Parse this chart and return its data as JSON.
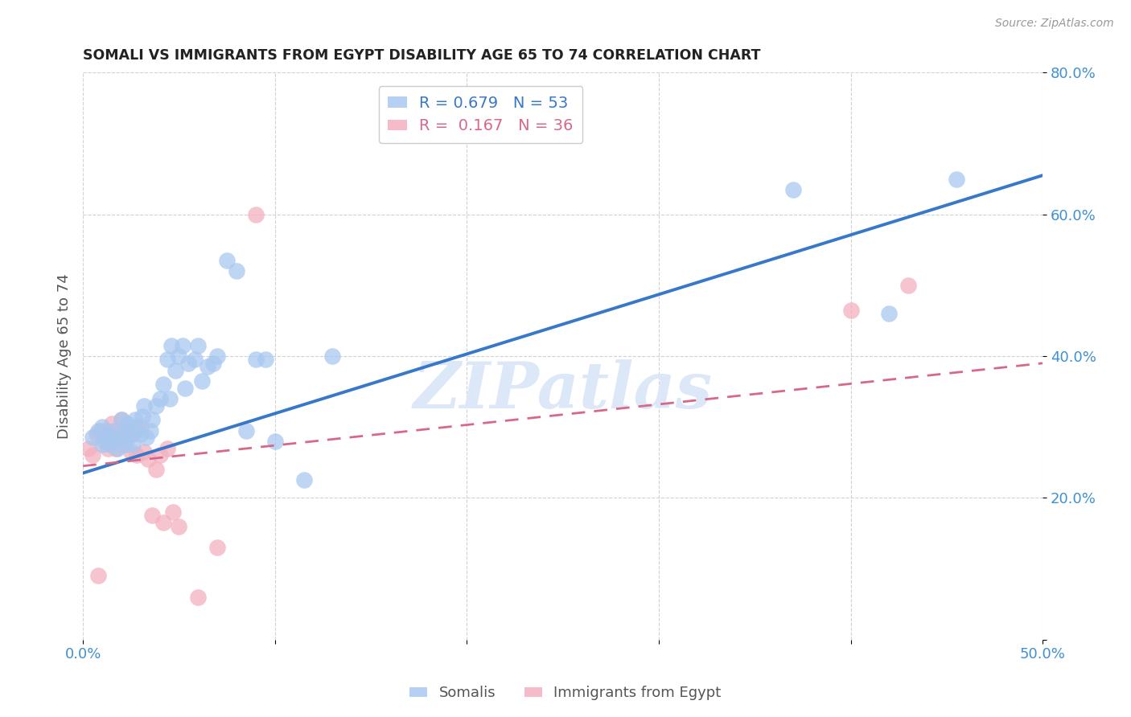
{
  "title": "SOMALI VS IMMIGRANTS FROM EGYPT DISABILITY AGE 65 TO 74 CORRELATION CHART",
  "source": "Source: ZipAtlas.com",
  "ylabel": "Disability Age 65 to 74",
  "xlim": [
    0.0,
    0.5
  ],
  "ylim": [
    0.0,
    0.8
  ],
  "xticks": [
    0.0,
    0.1,
    0.2,
    0.3,
    0.4,
    0.5
  ],
  "yticks": [
    0.0,
    0.2,
    0.4,
    0.6,
    0.8
  ],
  "xticklabels": [
    "0.0%",
    "",
    "",
    "",
    "",
    "50.0%"
  ],
  "yticklabels": [
    "",
    "20.0%",
    "40.0%",
    "60.0%",
    "80.0%"
  ],
  "somali_color": "#a8c8f0",
  "egypt_color": "#f4b0c0",
  "somali_line_color": "#3878c8",
  "egypt_line_color": "#d86888",
  "watermark": "ZIPatlas",
  "watermark_color": "#dce8f8",
  "background_color": "#ffffff",
  "grid_color": "#cccccc",
  "tick_color": "#4090d0",
  "somali_x": [
    0.005,
    0.008,
    0.01,
    0.01,
    0.012,
    0.013,
    0.014,
    0.015,
    0.016,
    0.018,
    0.02,
    0.02,
    0.022,
    0.022,
    0.023,
    0.025,
    0.026,
    0.027,
    0.028,
    0.03,
    0.031,
    0.032,
    0.033,
    0.035,
    0.036,
    0.038,
    0.04,
    0.042,
    0.044,
    0.045,
    0.046,
    0.048,
    0.05,
    0.052,
    0.053,
    0.055,
    0.058,
    0.06,
    0.062,
    0.065,
    0.068,
    0.07,
    0.075,
    0.08,
    0.085,
    0.09,
    0.095,
    0.1,
    0.115,
    0.13,
    0.37,
    0.42,
    0.455
  ],
  "somali_y": [
    0.285,
    0.295,
    0.275,
    0.3,
    0.28,
    0.29,
    0.275,
    0.285,
    0.295,
    0.27,
    0.285,
    0.31,
    0.275,
    0.295,
    0.305,
    0.29,
    0.275,
    0.31,
    0.3,
    0.29,
    0.315,
    0.33,
    0.285,
    0.295,
    0.31,
    0.33,
    0.34,
    0.36,
    0.395,
    0.34,
    0.415,
    0.38,
    0.4,
    0.415,
    0.355,
    0.39,
    0.395,
    0.415,
    0.365,
    0.385,
    0.39,
    0.4,
    0.535,
    0.52,
    0.295,
    0.395,
    0.395,
    0.28,
    0.225,
    0.4,
    0.635,
    0.46,
    0.65
  ],
  "egypt_x": [
    0.003,
    0.005,
    0.007,
    0.008,
    0.01,
    0.011,
    0.012,
    0.013,
    0.014,
    0.015,
    0.016,
    0.017,
    0.018,
    0.019,
    0.02,
    0.022,
    0.024,
    0.025,
    0.026,
    0.027,
    0.028,
    0.03,
    0.032,
    0.034,
    0.036,
    0.038,
    0.04,
    0.042,
    0.044,
    0.047,
    0.05,
    0.06,
    0.07,
    0.09,
    0.4,
    0.43
  ],
  "egypt_y": [
    0.27,
    0.26,
    0.29,
    0.09,
    0.295,
    0.28,
    0.295,
    0.27,
    0.28,
    0.305,
    0.28,
    0.27,
    0.295,
    0.275,
    0.31,
    0.285,
    0.3,
    0.265,
    0.29,
    0.295,
    0.26,
    0.3,
    0.265,
    0.255,
    0.175,
    0.24,
    0.26,
    0.165,
    0.27,
    0.18,
    0.16,
    0.06,
    0.13,
    0.6,
    0.465,
    0.5
  ],
  "somali_R": 0.679,
  "somali_N": 53,
  "egypt_R": 0.167,
  "egypt_N": 36,
  "somali_line_x": [
    0.0,
    0.5
  ],
  "somali_line_y": [
    0.235,
    0.655
  ],
  "egypt_line_x": [
    0.0,
    0.5
  ],
  "egypt_line_y": [
    0.245,
    0.39
  ]
}
